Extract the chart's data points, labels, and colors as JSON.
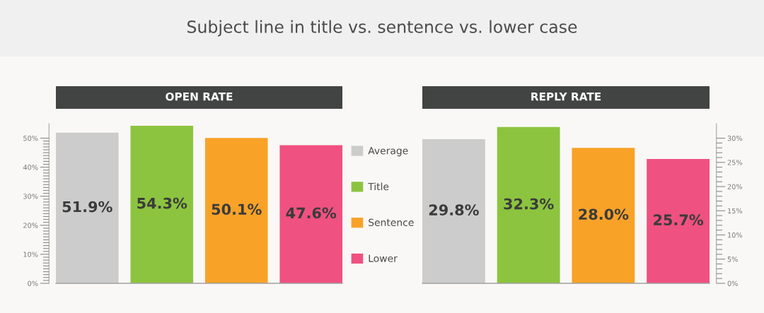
{
  "chart_data": [
    {
      "type": "bar",
      "title": "Subject line in title vs. sentence vs. lower case",
      "subtitle": "OPEN RATE",
      "categories": [
        null
      ],
      "series": [
        {
          "name": "Average",
          "color": "#cbcccb",
          "values": [
            51.9
          ],
          "value_labels": [
            "51.9%"
          ]
        },
        {
          "name": "Title",
          "color": "#8cc43f",
          "values": [
            54.3
          ],
          "value_labels": [
            "54.3%"
          ]
        },
        {
          "name": "Sentence",
          "color": "#f9a228",
          "values": [
            50.1
          ],
          "value_labels": [
            "50.1%"
          ]
        },
        {
          "name": "Lower",
          "color": "#ef5180",
          "values": [
            47.6
          ],
          "value_labels": [
            "47.6%"
          ]
        }
      ],
      "ylim": [
        0,
        55
      ],
      "yticks": [
        {
          "value": 0,
          "label": "0%"
        },
        {
          "value": 1,
          "label": null
        },
        {
          "value": 2,
          "label": null
        },
        {
          "value": 3,
          "label": null
        },
        {
          "value": 4,
          "label": null
        },
        {
          "value": 5,
          "label": null
        },
        {
          "value": 6,
          "label": null
        },
        {
          "value": 7,
          "label": null
        },
        {
          "value": 8,
          "label": null
        },
        {
          "value": 9,
          "label": null
        },
        {
          "value": 10,
          "label": "10%"
        },
        {
          "value": 11,
          "label": null
        },
        {
          "value": 12,
          "label": null
        },
        {
          "value": 13,
          "label": null
        },
        {
          "value": 14,
          "label": null
        },
        {
          "value": 15,
          "label": null
        },
        {
          "value": 16,
          "label": null
        },
        {
          "value": 17,
          "label": null
        },
        {
          "value": 18,
          "label": null
        },
        {
          "value": 19,
          "label": null
        },
        {
          "value": 20,
          "label": "20%"
        },
        {
          "value": 21,
          "label": null
        },
        {
          "value": 22,
          "label": null
        },
        {
          "value": 23,
          "label": null
        },
        {
          "value": 24,
          "label": null
        },
        {
          "value": 25,
          "label": null
        },
        {
          "value": 26,
          "label": null
        },
        {
          "value": 27,
          "label": null
        },
        {
          "value": 28,
          "label": null
        },
        {
          "value": 29,
          "label": null
        },
        {
          "value": 30,
          "label": "30%"
        },
        {
          "value": 31,
          "label": null
        },
        {
          "value": 32,
          "label": null
        },
        {
          "value": 33,
          "label": null
        },
        {
          "value": 34,
          "label": null
        },
        {
          "value": 35,
          "label": null
        },
        {
          "value": 36,
          "label": null
        },
        {
          "value": 37,
          "label": null
        },
        {
          "value": 38,
          "label": null
        },
        {
          "value": 39,
          "label": null
        },
        {
          "value": 40,
          "label": "40%"
        },
        {
          "value": 41,
          "label": null
        },
        {
          "value": 42,
          "label": null
        },
        {
          "value": 43,
          "label": null
        },
        {
          "value": 44,
          "label": null
        },
        {
          "value": 45,
          "label": null
        },
        {
          "value": 46,
          "label": null
        },
        {
          "value": 47,
          "label": null
        },
        {
          "value": 48,
          "label": null
        },
        {
          "value": 49,
          "label": null
        },
        {
          "value": 50,
          "label": "50%"
        }
      ],
      "legend": "right"
    },
    {
      "type": "bar",
      "subtitle": "REPLY RATE",
      "categories": [
        null
      ],
      "series": [
        {
          "color": "#cbcccb",
          "values": [
            29.8
          ],
          "value_labels": [
            "29.8%"
          ]
        },
        {
          "color": "#8cc43f",
          "values": [
            32.3
          ],
          "value_labels": [
            "32.3%"
          ]
        },
        {
          "color": "#f9a228",
          "values": [
            28.0
          ],
          "value_labels": [
            "28.0%"
          ]
        },
        {
          "color": "#ef5180",
          "values": [
            25.7
          ],
          "value_labels": [
            "25.7%"
          ]
        }
      ],
      "ylim": [
        0,
        33
      ],
      "yticks": [
        {
          "value": 0,
          "label": "0%"
        },
        {
          "value": 1,
          "label": null
        },
        {
          "value": 2,
          "label": null
        },
        {
          "value": 3,
          "label": null
        },
        {
          "value": 4,
          "label": null
        },
        {
          "value": 5,
          "label": "5%"
        },
        {
          "value": 6,
          "label": null
        },
        {
          "value": 7,
          "label": null
        },
        {
          "value": 8,
          "label": null
        },
        {
          "value": 9,
          "label": null
        },
        {
          "value": 10,
          "label": "10%"
        },
        {
          "value": 11,
          "label": null
        },
        {
          "value": 12,
          "label": null
        },
        {
          "value": 13,
          "label": null
        },
        {
          "value": 14,
          "label": null
        },
        {
          "value": 15,
          "label": "15%"
        },
        {
          "value": 16,
          "label": null
        },
        {
          "value": 17,
          "label": null
        },
        {
          "value": 18,
          "label": null
        },
        {
          "value": 19,
          "label": null
        },
        {
          "value": 20,
          "label": "20%"
        },
        {
          "value": 21,
          "label": null
        },
        {
          "value": 22,
          "label": null
        },
        {
          "value": 23,
          "label": null
        },
        {
          "value": 24,
          "label": null
        },
        {
          "value": 25,
          "label": "25%"
        },
        {
          "value": 26,
          "label": null
        },
        {
          "value": 27,
          "label": null
        },
        {
          "value": 28,
          "label": null
        },
        {
          "value": 29,
          "label": null
        },
        {
          "value": 30,
          "label": "30%"
        }
      ]
    }
  ]
}
